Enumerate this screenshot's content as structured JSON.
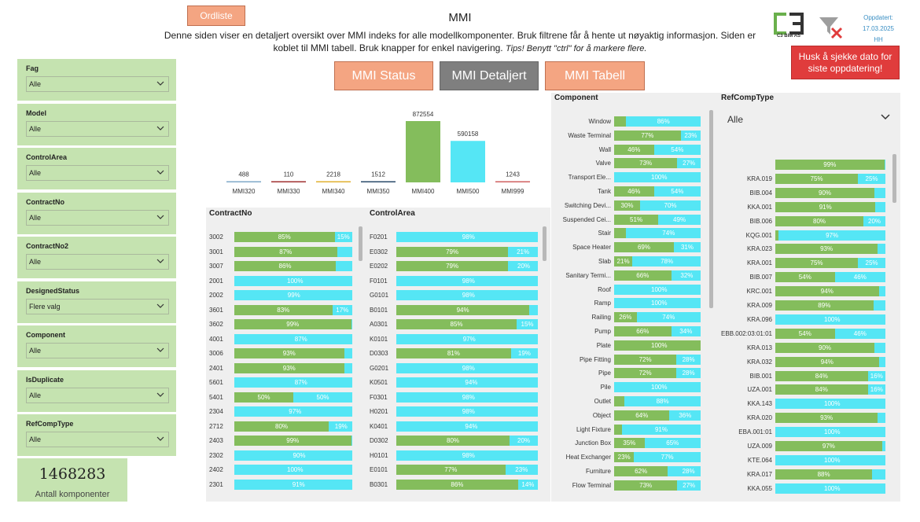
{
  "header": {
    "ordliste_label": "Ordliste",
    "title": "MMI",
    "description_line1": "Denne siden viser en detaljert oversikt over MMI indeks for alle modellkomponenter. Bruk filtrene får å hente ut nøyaktig informasjon. Siden er",
    "description_line2": "koblet til MMI tabell. Bruk knapper for enkel navigering.",
    "description_tip": "Tips! Benytt \"ctrl\" for å markere flere.",
    "logo_text": "C3 BIM AS",
    "updated_label": "Oppdatert:",
    "updated_date": "17.03.2025",
    "updated_by": "HH",
    "reminder": "Husk å sjekke dato for siste oppdatering!"
  },
  "nav": {
    "status": "MMI Status",
    "detail": "MMI Detaljert",
    "table": "MMI Tabell"
  },
  "slicers": [
    {
      "label": "Fag",
      "value": "Alle"
    },
    {
      "label": "Model",
      "value": "Alle"
    },
    {
      "label": "ControlArea",
      "value": "Alle"
    },
    {
      "label": "ContractNo",
      "value": "Alle"
    },
    {
      "label": "ContractNo2",
      "value": "Alle"
    },
    {
      "label": "DesignedStatus",
      "value": "Flere valg"
    },
    {
      "label": "Component",
      "value": "Alle"
    },
    {
      "label": "IsDuplicate",
      "value": "Alle"
    },
    {
      "label": "RefCompType",
      "value": "Alle"
    }
  ],
  "count_card": {
    "value": "1468283",
    "label": "Antall komponenter"
  },
  "colors": {
    "green": "#84bd5c",
    "cyan": "#55e6f5",
    "slicer_bg": "#c5e3b0",
    "accent": "#f4a582",
    "red": "#e03c3c"
  },
  "chart_data": [
    {
      "type": "bar",
      "title": "",
      "categories": [
        "MMI320",
        "MMI330",
        "MMI340",
        "MMI350",
        "MMI400",
        "MMI500",
        "MMI999"
      ],
      "values": [
        488,
        110,
        2218,
        1512,
        872554,
        590158,
        1243
      ],
      "value_labels": [
        "488",
        "110",
        "2218",
        "1512",
        "872554",
        "590158",
        "1243"
      ],
      "colors": [
        "#7fa9c8",
        "#a03030",
        "#e0b030",
        "#2a4a6a",
        "#84bd5c",
        "#55e6f5",
        "#d06060"
      ],
      "ylim": [
        0,
        872554
      ]
    },
    {
      "type": "bar",
      "title": "ContractNo",
      "categories": [
        "3002",
        "3001",
        "3007",
        "2001",
        "2002",
        "3601",
        "3602",
        "4001",
        "3006",
        "2401",
        "5601",
        "5401",
        "2304",
        "2712",
        "2403",
        "2302",
        "2402",
        "2301"
      ],
      "series": [
        {
          "values": [
            85,
            87,
            86,
            0,
            0,
            83,
            99,
            0,
            93,
            93,
            0,
            50,
            0,
            80,
            99,
            0,
            0,
            0
          ],
          "labels": [
            "85%",
            "87%",
            "86%",
            "",
            "",
            "83%",
            "99%",
            "",
            "93%",
            "93%",
            "",
            "50%",
            "",
            "80%",
            "99%",
            "",
            "",
            ""
          ]
        },
        {
          "values": [
            15,
            13,
            14,
            100,
            99,
            17,
            1,
            87,
            7,
            7,
            87,
            50,
            97,
            19,
            1,
            90,
            100,
            91
          ],
          "labels": [
            "15%",
            "",
            "",
            "100%",
            "99%",
            "17%",
            "",
            "87%",
            "",
            "",
            "87%",
            "50%",
            "97%",
            "19%",
            "",
            "90%",
            "100%",
            "91%"
          ]
        }
      ]
    },
    {
      "type": "bar",
      "title": "ControlArea",
      "categories": [
        "F0201",
        "E0302",
        "E0202",
        "F0101",
        "G0101",
        "B0101",
        "A0301",
        "K0101",
        "D0303",
        "G0201",
        "K0501",
        "F0301",
        "H0201",
        "K0401",
        "D0302",
        "H0101",
        "E0101",
        "B0301"
      ],
      "series": [
        {
          "values": [
            0,
            79,
            79,
            0,
            0,
            94,
            85,
            0,
            81,
            0,
            0,
            0,
            0,
            0,
            80,
            0,
            77,
            86
          ],
          "labels": [
            "",
            "79%",
            "79%",
            "",
            "",
            "94%",
            "85%",
            "",
            "81%",
            "",
            "",
            "",
            "",
            "",
            "80%",
            "",
            "77%",
            "86%"
          ]
        },
        {
          "values": [
            98,
            21,
            20,
            98,
            98,
            6,
            15,
            97,
            19,
            98,
            94,
            98,
            98,
            94,
            20,
            98,
            23,
            14
          ],
          "labels": [
            "98%",
            "21%",
            "20%",
            "98%",
            "98%",
            "",
            "15%",
            "97%",
            "19%",
            "98%",
            "94%",
            "98%",
            "98%",
            "94%",
            "20%",
            "98%",
            "23%",
            "14%"
          ]
        }
      ]
    },
    {
      "type": "bar",
      "title": "Component",
      "categories": [
        "Window",
        "Waste Terminal",
        "Wall",
        "Valve",
        "Transport Ele...",
        "Tank",
        "Switching Devi...",
        "Suspended Cei...",
        "Stair",
        "Space Heater",
        "Slab",
        "Sanitary Termi...",
        "Roof",
        "Ramp",
        "Railing",
        "Pump",
        "Plate",
        "Pipe Fitting",
        "Pipe",
        "Pile",
        "Outlet",
        "Object",
        "Light Fixture",
        "Junction Box",
        "Heat Exchanger",
        "Furniture",
        "Flow Terminal"
      ],
      "series": [
        {
          "values": [
            14,
            77,
            46,
            73,
            0,
            46,
            30,
            51,
            14,
            69,
            21,
            66,
            0,
            0,
            26,
            66,
            100,
            72,
            72,
            0,
            12,
            64,
            9,
            35,
            23,
            62,
            73
          ],
          "labels": [
            "",
            "77%",
            "46%",
            "73%",
            "",
            "46%",
            "30%",
            "51%",
            "",
            "69%",
            "21%",
            "66%",
            "",
            "",
            "26%",
            "66%",
            "100%",
            "72%",
            "72%",
            "",
            "",
            "64%",
            "",
            "35%",
            "23%",
            "62%",
            "73%"
          ]
        },
        {
          "values": [
            86,
            23,
            54,
            27,
            100,
            54,
            70,
            49,
            74,
            31,
            78,
            32,
            100,
            100,
            74,
            34,
            0,
            28,
            28,
            100,
            88,
            36,
            91,
            65,
            77,
            28,
            27
          ],
          "labels": [
            "86%",
            "23%",
            "54%",
            "27%",
            "100%",
            "54%",
            "70%",
            "49%",
            "74%",
            "31%",
            "78%",
            "32%",
            "100%",
            "100%",
            "74%",
            "34%",
            "",
            "28%",
            "28%",
            "100%",
            "88%",
            "36%",
            "91%",
            "65%",
            "77%",
            "28%",
            "27%"
          ]
        }
      ]
    },
    {
      "type": "bar",
      "title": "RefCompType",
      "selected": "Alle",
      "categories": [
        "",
        "KRA.019",
        "BIB.004",
        "KKA.001",
        "BIB.006",
        "KQG.001",
        "KRA.023",
        "KRA.001",
        "BIB.007",
        "KRC.001",
        "KRA.009",
        "KRA.096",
        "EBB.002:03:01:01",
        "KRA.013",
        "KRA.032",
        "BIB.001",
        "UZA.001",
        "KKA.143",
        "KRA.020",
        "EBA.001:01",
        "UZA.009",
        "KTE.064",
        "KRA.017",
        "KKA.055"
      ],
      "series": [
        {
          "values": [
            99,
            75,
            90,
            91,
            80,
            3,
            93,
            75,
            54,
            94,
            89,
            0,
            54,
            90,
            94,
            84,
            84,
            0,
            93,
            0,
            97,
            0,
            88,
            0
          ],
          "labels": [
            "99%",
            "75%",
            "90%",
            "91%",
            "80%",
            "",
            "93%",
            "75%",
            "54%",
            "94%",
            "89%",
            "",
            "54%",
            "90%",
            "94%",
            "84%",
            "84%",
            "",
            "93%",
            "",
            "97%",
            "",
            "88%",
            ""
          ]
        },
        {
          "values": [
            1,
            25,
            10,
            9,
            20,
            97,
            7,
            25,
            46,
            6,
            11,
            100,
            46,
            10,
            6,
            16,
            16,
            100,
            7,
            100,
            3,
            100,
            12,
            100
          ],
          "labels": [
            "",
            "25%",
            "",
            "",
            "20%",
            "97%",
            "",
            "25%",
            "46%",
            "",
            "",
            "100%",
            "46%",
            "",
            "",
            "16%",
            "16%",
            "100%",
            "",
            "100%",
            "",
            "100%",
            "",
            "100%"
          ]
        }
      ]
    }
  ]
}
